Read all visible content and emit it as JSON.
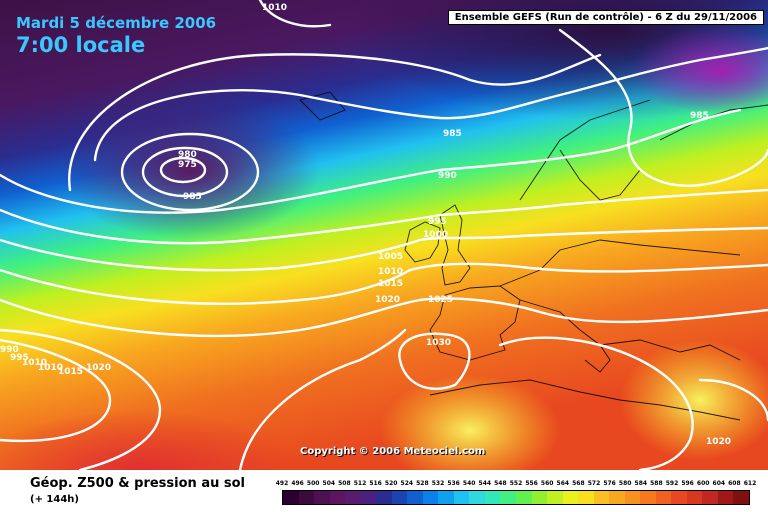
{
  "header": {
    "date": "Mardi 5 décembre 2006",
    "time": "7:00 locale",
    "model": "Ensemble GEFS (Run de contrôle)  - 6 Z du 29/11/2006"
  },
  "copyright": "Copyright © 2006 Meteociel.com",
  "footer": {
    "title": "Géop. Z500 & pression au sol",
    "subtitle": "(+ 144h)"
  },
  "isobar_labels": [
    "1010",
    "985",
    "980",
    "975",
    "985",
    "985",
    "990",
    "995",
    "1000",
    "1005",
    "1010",
    "1015",
    "1020",
    "1025",
    "1030",
    "990",
    "995",
    "1010",
    "1010",
    "1015",
    "1020",
    "1020"
  ],
  "scale": {
    "values": [
      "492",
      "496",
      "500",
      "504",
      "508",
      "512",
      "516",
      "520",
      "524",
      "528",
      "532",
      "536",
      "540",
      "544",
      "548",
      "552",
      "556",
      "560",
      "564",
      "568",
      "572",
      "576",
      "580",
      "584",
      "588",
      "592",
      "596",
      "600",
      "604",
      "608",
      "612"
    ],
    "colors": [
      "#2b0030",
      "#3d0a40",
      "#4d1050",
      "#5c1660",
      "#5a1a70",
      "#4a2080",
      "#2a2d90",
      "#1a44b0",
      "#1060d0",
      "#0a80e8",
      "#10a0f0",
      "#20c0f0",
      "#30d8e0",
      "#30e8b8",
      "#40f080",
      "#60f050",
      "#90f030",
      "#c0f020",
      "#e8f020",
      "#f8e020",
      "#f8c020",
      "#f8a820",
      "#f89020",
      "#f87820",
      "#f06020",
      "#e84820",
      "#d83820",
      "#c02820",
      "#a01818",
      "#801010"
    ]
  },
  "colors": {
    "title_text": "#39c8ff",
    "isobar": "#ffffff",
    "coastline": "#000000"
  }
}
